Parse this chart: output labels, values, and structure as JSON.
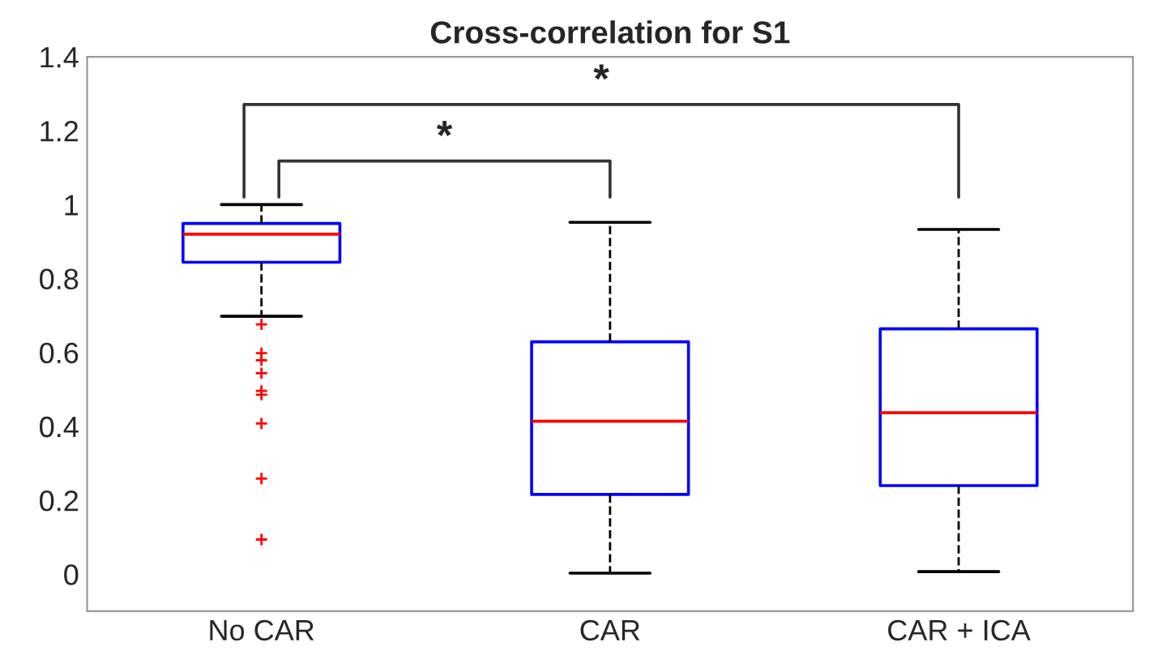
{
  "chart_data": {
    "type": "box",
    "title": "Cross-correlation for S1",
    "categories": [
      "No CAR",
      "CAR",
      "CAR + ICA"
    ],
    "series": [
      {
        "color": "#0000ff",
        "boxes": [
          {
            "low": 0.698,
            "q1": 0.844,
            "median": 0.92,
            "q3": 0.949,
            "high": 1.0,
            "outliers": [
              0.676,
              0.598,
              0.579,
              0.544,
              0.496,
              0.486,
              0.408,
              0.259,
              0.094
            ]
          },
          {
            "low": 0.003,
            "q1": 0.216,
            "median": 0.414,
            "q3": 0.629,
            "high": 0.952
          },
          {
            "low": 0.007,
            "q1": 0.24,
            "median": 0.437,
            "q3": 0.664,
            "high": 0.933
          }
        ]
      }
    ],
    "ylim": [
      -0.1,
      1.4
    ],
    "yticks": [
      0,
      0.2,
      0.4,
      0.6,
      0.8,
      1,
      1.2,
      1.4
    ],
    "annotations": [
      "*",
      "*"
    ],
    "grid": false
  }
}
